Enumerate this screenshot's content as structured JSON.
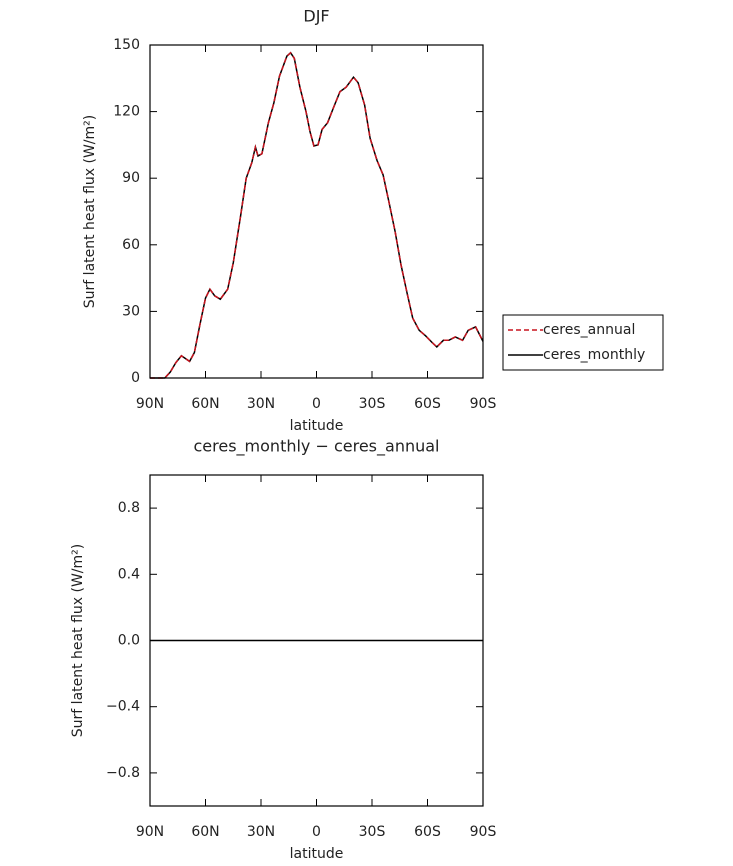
{
  "chart_data": [
    {
      "type": "line",
      "title": "DJF",
      "xlabel": "latitude",
      "ylabel": "Surf latent heat flux (W/m²)",
      "x": [
        90,
        82,
        79,
        76,
        73,
        68.6,
        66,
        63,
        60,
        57.6,
        55,
        52,
        48,
        45,
        41,
        38,
        35,
        33,
        31.6,
        29.5,
        26,
        23,
        20,
        16,
        14,
        12,
        9,
        5.7,
        3.5,
        1.4,
        -0.8,
        -3,
        -6,
        -9.5,
        -12.7,
        -16,
        -20,
        -22.5,
        -26,
        -29,
        -32.7,
        -36,
        -39,
        -42.5,
        -45.7,
        -49,
        -52,
        -55.5,
        -59,
        -62.5,
        -65,
        -68.6,
        -71.5,
        -75,
        -79,
        -82,
        -86,
        -90
      ],
      "series": [
        {
          "name": "ceres_monthly",
          "color": "#000000",
          "line_style": "solid",
          "values": [
            0,
            0,
            2.7,
            7,
            10,
            7.5,
            11.5,
            24,
            36,
            40,
            37,
            35.5,
            40,
            52,
            73,
            90,
            97,
            104,
            100,
            101,
            115,
            124,
            136,
            145,
            146.5,
            144,
            131,
            120,
            111,
            104.5,
            105,
            112,
            115,
            122.5,
            129,
            131,
            135.5,
            133,
            123,
            108,
            98,
            91.5,
            80,
            66,
            51,
            38,
            27,
            21.5,
            19,
            16,
            14,
            17,
            17,
            18.5,
            17,
            21.5,
            23,
            16.5
          ]
        },
        {
          "name": "ceres_annual",
          "color": "#c8141e",
          "line_style": "dashed",
          "values": [
            0,
            0,
            2.7,
            7,
            10,
            7.5,
            11.5,
            24,
            36,
            40,
            37,
            35.5,
            40,
            52,
            73,
            90,
            97,
            104,
            100,
            101,
            115,
            124,
            136,
            145,
            146.5,
            144,
            131,
            120,
            111,
            104.5,
            105,
            112,
            115,
            122.5,
            129,
            131,
            135.5,
            133,
            123,
            108,
            98,
            91.5,
            80,
            66,
            51,
            38,
            27,
            21.5,
            19,
            16,
            14,
            17,
            17,
            18.5,
            17,
            21.5,
            23,
            16.5
          ]
        }
      ],
      "xlim": [
        90,
        -90
      ],
      "xticks": [
        {
          "value": 90,
          "label": "90N"
        },
        {
          "value": 60,
          "label": "60N"
        },
        {
          "value": 30,
          "label": "30N"
        },
        0,
        {
          "value": -30,
          "label": "30S"
        },
        {
          "value": -60,
          "label": "60S"
        },
        {
          "value": -90,
          "label": "90S"
        }
      ],
      "ylim": [
        0,
        150
      ],
      "yticks": [
        0,
        30,
        60,
        90,
        120,
        150
      ],
      "legend": "outside right"
    },
    {
      "type": "line",
      "title": "ceres_monthly − ceres_annual",
      "xlabel": "latitude",
      "ylabel": "Surf latent heat flux (W/m²)",
      "x": [
        90,
        -90
      ],
      "series": [
        {
          "color": "#000000",
          "line_style": "solid",
          "values": [
            0,
            0
          ]
        }
      ],
      "xlim": [
        90,
        -90
      ],
      "xticks": [
        {
          "value": 90,
          "label": "90N"
        },
        {
          "value": 60,
          "label": "60N"
        },
        {
          "value": 30,
          "label": "30N"
        },
        0,
        {
          "value": -30,
          "label": "30S"
        },
        {
          "value": -60,
          "label": "60S"
        },
        {
          "value": -90,
          "label": "90S"
        }
      ],
      "ylim": [
        -1,
        1
      ],
      "yticks": [
        {
          "value": -0.8,
          "label": "−0.8"
        },
        {
          "value": -0.4,
          "label": "−0.4"
        },
        {
          "value": 0,
          "label": "0.0"
        },
        {
          "value": 0.4,
          "label": "0.4"
        },
        {
          "value": 0.8,
          "label": "0.8"
        }
      ]
    }
  ]
}
